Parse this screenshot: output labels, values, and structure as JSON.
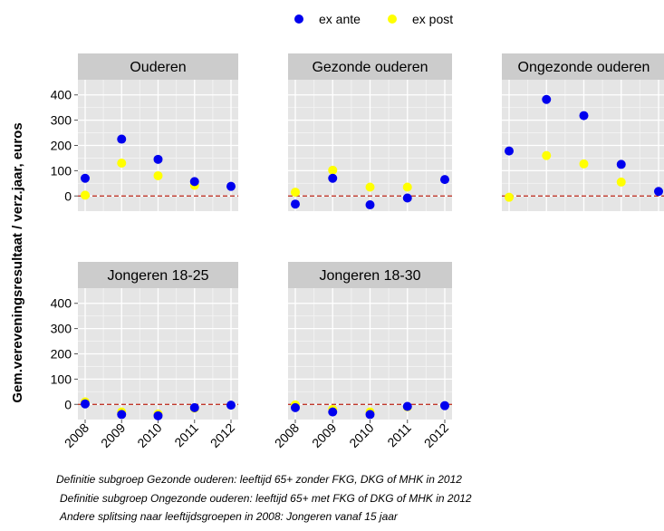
{
  "chart_data": {
    "type": "scatter",
    "title": "",
    "ylabel": "Gem.vereveningsresultaat / verz.jaar, euros",
    "xlabel": "",
    "ylim": [
      -60,
      460
    ],
    "yticks": [
      0,
      100,
      200,
      300,
      400
    ],
    "x_categories": [
      "2008",
      "2009",
      "2010",
      "2011",
      "2012"
    ],
    "reference_line": 0,
    "legend": {
      "placement": "top",
      "entries": [
        {
          "name": "ex ante",
          "color": "#0000ee"
        },
        {
          "name": "ex post",
          "color": "#ffff00"
        }
      ]
    },
    "panels": [
      {
        "title": "Ouderen",
        "series": [
          {
            "name": "ex ante",
            "values": [
              70,
              225,
              145,
              57,
              38
            ]
          },
          {
            "name": "ex post",
            "values": [
              3,
              130,
              80,
              42,
              null
            ]
          }
        ]
      },
      {
        "title": "Gezonde ouderen",
        "series": [
          {
            "name": "ex ante",
            "values": [
              -32,
              70,
              -35,
              -8,
              65
            ]
          },
          {
            "name": "ex post",
            "values": [
              15,
              102,
              35,
              35,
              null
            ]
          }
        ]
      },
      {
        "title": "Ongezonde ouderen",
        "series": [
          {
            "name": "ex ante",
            "values": [
              178,
              382,
              318,
              125,
              18
            ]
          },
          {
            "name": "ex post",
            "values": [
              -5,
              160,
              127,
              55,
              null
            ]
          }
        ]
      },
      {
        "title": "Jongeren 18-25",
        "series": [
          {
            "name": "ex ante",
            "values": [
              2,
              -40,
              -45,
              -13,
              -3
            ]
          },
          {
            "name": "ex post",
            "values": [
              10,
              -30,
              -38,
              -15,
              null
            ]
          }
        ]
      },
      {
        "title": "Jongeren 18-30",
        "series": [
          {
            "name": "ex ante",
            "values": [
              -13,
              -30,
              -40,
              -8,
              -5
            ]
          },
          {
            "name": "ex post",
            "values": [
              -2,
              -20,
              -30,
              -10,
              null
            ]
          }
        ]
      }
    ]
  },
  "notes": [
    "Definitie subgroep Gezonde ouderen: leeftijd 65+ zonder FKG, DKG of MHK in 2012",
    "Definitie subgroep Ongezonde ouderen: leeftijd 65+ met FKG of DKG of MHK in 2012",
    "Andere splitsing naar leeftijdsgroepen in 2008: Jongeren vanaf 15 jaar"
  ],
  "colors": {
    "panel_bg": "#e5e5e5",
    "strip_bg": "#cccccc",
    "grid_major": "#ffffff",
    "grid_minor": "#f2f2f2",
    "reference_line": "#c0392b",
    "tick_text": "#000000"
  }
}
